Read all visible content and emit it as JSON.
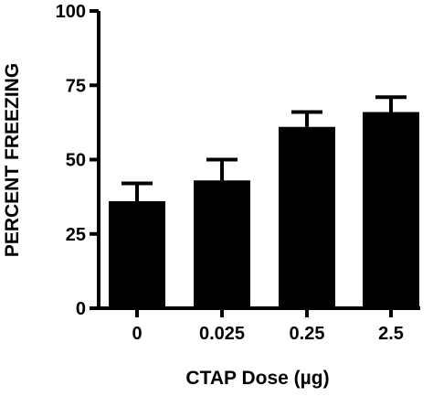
{
  "chart_data": {
    "type": "bar",
    "categories": [
      "0",
      "0.025",
      "0.25",
      "2.5"
    ],
    "values": [
      36,
      43,
      61,
      66
    ],
    "errors": [
      6,
      7,
      5,
      5
    ],
    "title": "",
    "xlabel": "CTAP Dose (µg)",
    "ylabel": "PERCENT FREEZING",
    "ylim": [
      0,
      100
    ],
    "yticks": [
      "0",
      "25",
      "50",
      "75",
      "100"
    ],
    "grid": false,
    "legend": "none",
    "colors": {
      "bar": "#000000",
      "axis": "#000000",
      "background": "#ffffff"
    }
  }
}
